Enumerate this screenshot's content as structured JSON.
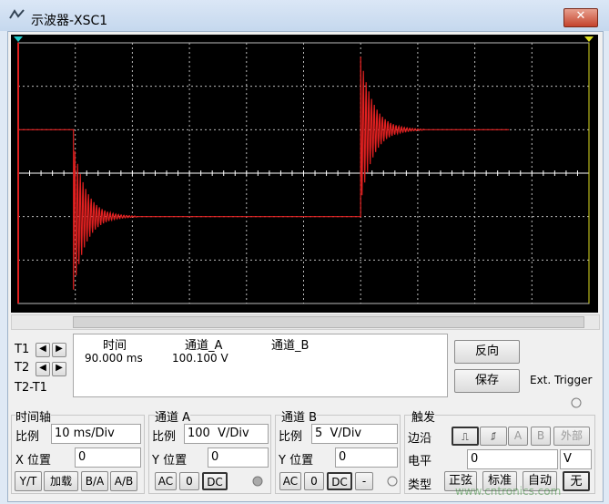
{
  "window": {
    "title": "示波器-XSC1"
  },
  "cursors": {
    "rows": [
      "T1",
      "T2",
      "T2-T1"
    ],
    "headers": [
      "时间",
      "通道_A",
      "通道_B"
    ],
    "t1_time": "90.000 ms",
    "t1_channel_a": "100.100 V"
  },
  "buttons": {
    "reverse": "反向",
    "save": "保存",
    "ext_trigger": "Ext. Trigger"
  },
  "timebase": {
    "title": "时间轴",
    "scale_label": "比例",
    "scale": "10 ms/Div",
    "xpos_label": "X 位置",
    "xpos": "0",
    "modes": [
      "Y/T",
      "加载",
      "B/A",
      "A/B"
    ]
  },
  "channel_a": {
    "title": "通道 A",
    "scale_label": "比例",
    "scale": "100  V/Div",
    "ypos_label": "Y 位置",
    "ypos": "0",
    "coupling": [
      "AC",
      "0",
      "DC"
    ]
  },
  "channel_b": {
    "title": "通道 B",
    "scale_label": "比例",
    "scale": "5  V/Div",
    "ypos_label": "Y 位置",
    "ypos": "0",
    "coupling": [
      "AC",
      "0",
      "DC",
      "-"
    ]
  },
  "trigger": {
    "title": "触发",
    "edge_label": "边沿",
    "sources": [
      "A",
      "B",
      "外部"
    ],
    "level_label": "电平",
    "level": "0",
    "level_unit": "V",
    "type_label": "类型",
    "types": [
      "正弦",
      "标准",
      "自动",
      "无"
    ]
  },
  "watermark": "www.cntronics.com"
}
